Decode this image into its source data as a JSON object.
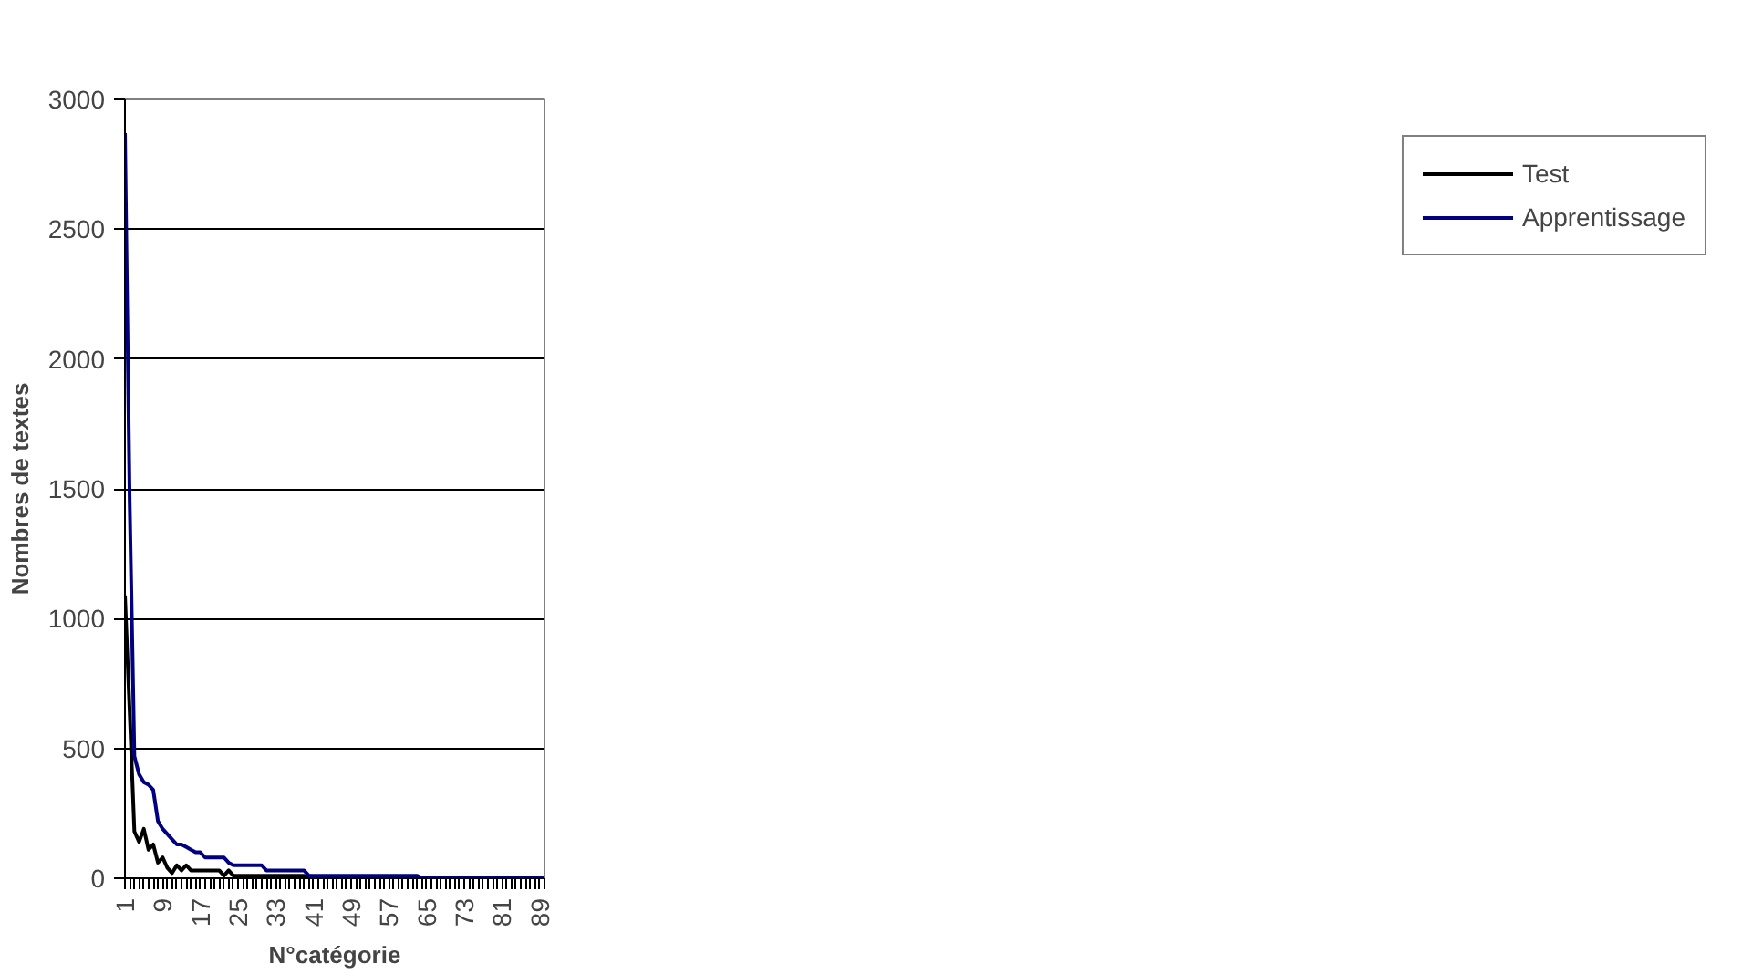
{
  "chart_data": {
    "type": "line",
    "xlabel": "N°catégorie",
    "ylabel": "Nombres de textes",
    "categories": [
      "1",
      null,
      null,
      null,
      null,
      null,
      null,
      null,
      "9",
      null,
      null,
      null,
      null,
      null,
      null,
      null,
      "17",
      null,
      null,
      null,
      null,
      null,
      null,
      null,
      "25",
      null,
      null,
      null,
      null,
      null,
      null,
      null,
      "33",
      null,
      null,
      null,
      null,
      null,
      null,
      null,
      "41",
      null,
      null,
      null,
      null,
      null,
      null,
      null,
      "49",
      null,
      null,
      null,
      null,
      null,
      null,
      null,
      "57",
      null,
      null,
      null,
      null,
      null,
      null,
      null,
      "65",
      null,
      null,
      null,
      null,
      null,
      null,
      null,
      "73",
      null,
      null,
      null,
      null,
      null,
      null,
      null,
      "81",
      null,
      null,
      null,
      null,
      null,
      null,
      null,
      "89",
      null
    ],
    "series": [
      {
        "name": "Test",
        "color": "#000000",
        "values": [
          1090,
          640,
          180,
          140,
          190,
          110,
          130,
          60,
          80,
          40,
          20,
          50,
          30,
          50,
          30,
          30,
          30,
          30,
          30,
          30,
          30,
          10,
          30,
          10,
          10,
          10,
          10,
          10,
          10,
          10,
          10,
          10,
          10,
          10,
          10,
          10,
          10,
          10,
          10,
          0,
          0,
          0,
          0,
          0,
          0,
          0,
          0,
          0,
          0,
          0,
          0,
          0,
          0,
          0,
          0,
          0,
          0,
          0,
          0,
          0,
          0,
          0,
          0,
          0,
          0,
          0,
          0,
          0,
          0,
          0,
          0,
          0,
          0,
          0,
          0,
          0,
          0,
          0,
          0,
          0,
          0,
          0,
          0,
          0,
          0,
          0,
          0,
          0,
          0,
          0
        ]
      },
      {
        "name": "Apprentissage",
        "color": "#000080",
        "values": [
          2870,
          1450,
          470,
          400,
          370,
          360,
          340,
          220,
          190,
          170,
          150,
          130,
          130,
          120,
          110,
          100,
          100,
          80,
          80,
          80,
          80,
          80,
          60,
          50,
          50,
          50,
          50,
          50,
          50,
          50,
          30,
          30,
          30,
          30,
          30,
          30,
          30,
          30,
          30,
          10,
          10,
          10,
          10,
          10,
          10,
          10,
          10,
          10,
          10,
          10,
          10,
          10,
          10,
          10,
          10,
          10,
          10,
          10,
          10,
          10,
          10,
          10,
          10,
          0,
          0,
          0,
          0,
          0,
          0,
          0,
          0,
          0,
          0,
          0,
          0,
          0,
          0,
          0,
          0,
          0,
          0,
          0,
          0,
          0,
          0,
          0,
          0,
          0,
          0,
          0
        ]
      }
    ],
    "ylim": [
      0,
      3000
    ],
    "yticks": [
      0,
      500,
      1000,
      1500,
      2000,
      2500,
      3000
    ],
    "grid": "y",
    "legend": "right"
  }
}
